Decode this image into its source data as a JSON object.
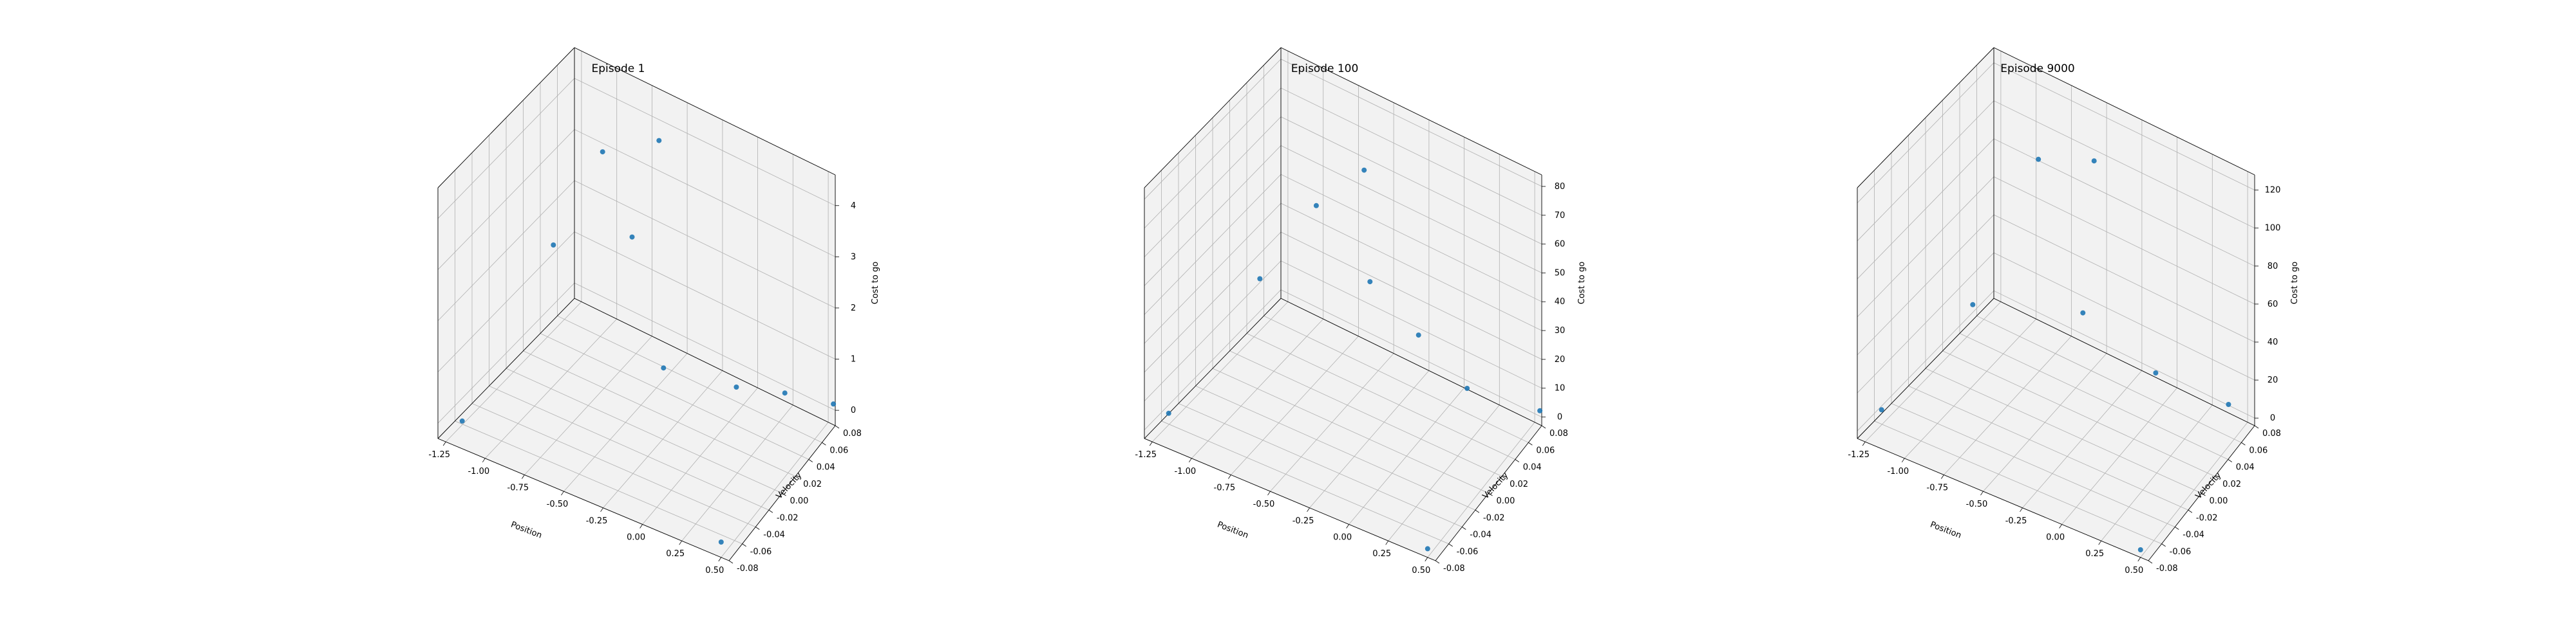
{
  "chart_data": [
    {
      "type": "scatter",
      "title": "Episode 1",
      "xlabel": "Position",
      "ylabel": "Velocity",
      "zlabel": "Cost to go",
      "xlim": [
        -1.3,
        0.55
      ],
      "ylim": [
        -0.08,
        0.08
      ],
      "zlim": [
        -0.3,
        4.6
      ],
      "x_ticks": [
        "-1.25",
        "-1.00",
        "-0.75",
        "-0.50",
        "-0.25",
        "0.00",
        "0.25",
        "0.50"
      ],
      "y_ticks": [
        "-0.08",
        "-0.06",
        "-0.04",
        "-0.02",
        "0.00",
        "0.02",
        "0.04",
        "0.06",
        "0.08"
      ],
      "z_ticks": [
        "0",
        "1",
        "2",
        "3",
        "4"
      ],
      "series": [
        {
          "values": [
            {
              "x": -1.2,
              "y": -0.07,
              "z": 0.0
            },
            {
              "x": -1.0,
              "y": 0.0,
              "z": 2.5
            },
            {
              "x": -0.85,
              "y": 0.03,
              "z": 4.0
            },
            {
              "x": -0.6,
              "y": 0.05,
              "z": 4.2
            },
            {
              "x": -0.5,
              "y": 0.0,
              "z": 3.3
            },
            {
              "x": -0.3,
              "y": 0.0,
              "z": 1.0
            },
            {
              "x": 0.0,
              "y": 0.03,
              "z": 0.5
            },
            {
              "x": 0.2,
              "y": 0.05,
              "z": 0.3
            },
            {
              "x": 0.4,
              "y": 0.07,
              "z": 0.0
            },
            {
              "x": 0.5,
              "y": -0.08,
              "z": 0.0
            }
          ]
        }
      ],
      "color": "#1f77b4",
      "grid": true
    },
    {
      "type": "scatter",
      "title": "Episode 100",
      "xlabel": "Position",
      "ylabel": "Velocity",
      "zlabel": "Cost to go",
      "xlim": [
        -1.3,
        0.55
      ],
      "ylim": [
        -0.08,
        0.08
      ],
      "zlim": [
        -3,
        84
      ],
      "x_ticks": [
        "-1.25",
        "-1.00",
        "-0.75",
        "-0.50",
        "-0.25",
        "0.00",
        "0.25",
        "0.50"
      ],
      "y_ticks": [
        "-0.08",
        "-0.06",
        "-0.04",
        "-0.02",
        "0.00",
        "0.02",
        "0.04",
        "0.06",
        "0.08"
      ],
      "z_ticks": [
        "0",
        "10",
        "20",
        "30",
        "40",
        "50",
        "60",
        "70",
        "80"
      ],
      "series": [
        {
          "values": [
            {
              "x": -1.2,
              "y": -0.07,
              "z": 5.0
            },
            {
              "x": -1.0,
              "y": 0.0,
              "z": 35.0
            },
            {
              "x": -0.75,
              "y": 0.02,
              "z": 60.0
            },
            {
              "x": -0.5,
              "y": 0.03,
              "z": 75.0
            },
            {
              "x": -0.3,
              "y": 0.0,
              "z": 50.0
            },
            {
              "x": -0.1,
              "y": 0.02,
              "z": 30.0
            },
            {
              "x": 0.1,
              "y": 0.04,
              "z": 10.0
            },
            {
              "x": 0.4,
              "y": 0.07,
              "z": 0.0
            },
            {
              "x": 0.5,
              "y": -0.08,
              "z": 0.0
            }
          ]
        }
      ],
      "color": "#1f77b4",
      "grid": true
    },
    {
      "type": "scatter",
      "title": "Episode 9000",
      "xlabel": "Position",
      "ylabel": "Velocity",
      "zlabel": "Cost to go",
      "xlim": [
        -1.3,
        0.55
      ],
      "ylim": [
        -0.08,
        0.08
      ],
      "zlim": [
        -4,
        128
      ],
      "x_ticks": [
        "-1.25",
        "-1.00",
        "-0.75",
        "-0.50",
        "-0.25",
        "0.00",
        "0.25",
        "0.50"
      ],
      "y_ticks": [
        "-0.08",
        "-0.06",
        "-0.04",
        "-0.02",
        "0.00",
        "0.02",
        "0.04",
        "0.06",
        "0.08"
      ],
      "z_ticks": [
        "0",
        "20",
        "40",
        "60",
        "80",
        "100",
        "120"
      ],
      "series": [
        {
          "values": [
            {
              "x": -1.2,
              "y": -0.07,
              "z": 10.0
            },
            {
              "x": -1.0,
              "y": 0.0,
              "z": 40.0
            },
            {
              "x": -0.8,
              "y": 0.04,
              "z": 105.0
            },
            {
              "x": -0.5,
              "y": 0.05,
              "z": 110.0
            },
            {
              "x": -0.3,
              "y": 0.0,
              "z": 60.0
            },
            {
              "x": 0.0,
              "y": 0.03,
              "z": 25.0
            },
            {
              "x": 0.3,
              "y": 0.06,
              "z": 5.0
            },
            {
              "x": 0.5,
              "y": -0.08,
              "z": 0.0
            }
          ]
        }
      ],
      "color": "#1f77b4",
      "grid": true
    }
  ]
}
